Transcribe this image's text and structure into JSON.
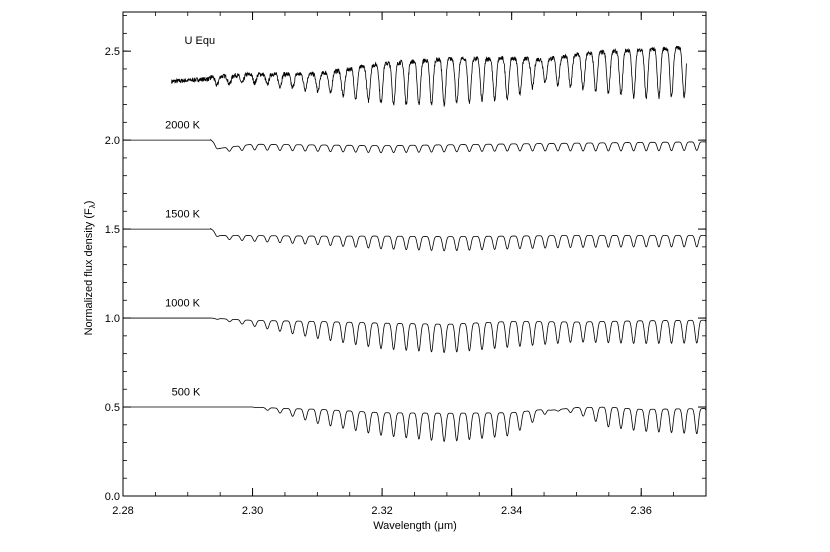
{
  "chart_data": {
    "type": "line",
    "xlabel": "Wavelength (μm)",
    "ylabel": "Normalized flux density (F",
    "ylabel_sub": "λ",
    "ylabel_close": ")",
    "xlim": [
      2.28,
      2.37
    ],
    "ylim": [
      0.0,
      2.72
    ],
    "x_ticks": [
      2.28,
      2.3,
      2.32,
      2.34,
      2.36
    ],
    "x_tick_labels": [
      "2.28",
      "2.30",
      "2.32",
      "2.34",
      "2.36"
    ],
    "y_ticks": [
      0.0,
      0.5,
      1.0,
      1.5,
      2.0,
      2.5
    ],
    "y_tick_labels": [
      "0.0",
      "0.5",
      "1.0",
      "1.5",
      "2.0",
      "2.5"
    ],
    "grid": false,
    "legend": "none",
    "series": [
      {
        "name": "U Equ",
        "baseline": 2.35,
        "x_start": 2.2875,
        "x_end": 2.367,
        "band_head": 2.2935,
        "note_shape": "noisy observed spectrum with strong CO absorption lines",
        "envelope": [
          [
            2.2875,
            0.03
          ],
          [
            2.3,
            0.03
          ],
          [
            2.31,
            0.06
          ],
          [
            2.315,
            0.1
          ],
          [
            2.32,
            0.14
          ],
          [
            2.33,
            0.16
          ],
          [
            2.34,
            0.14
          ],
          [
            2.345,
            0.08
          ],
          [
            2.35,
            0.12
          ],
          [
            2.36,
            0.17
          ],
          [
            2.367,
            0.17
          ]
        ],
        "baseline_shape": [
          [
            2.2875,
            2.33
          ],
          [
            2.3,
            2.36
          ],
          [
            2.31,
            2.35
          ],
          [
            2.32,
            2.38
          ],
          [
            2.33,
            2.4
          ],
          [
            2.34,
            2.41
          ],
          [
            2.35,
            2.44
          ],
          [
            2.36,
            2.45
          ],
          [
            2.367,
            2.46
          ]
        ],
        "label_x": 2.2895,
        "label_y": 2.54
      },
      {
        "name": "2000 K",
        "baseline": 2.0,
        "x_start": 2.28,
        "x_end": 2.37,
        "band_head": 2.2935,
        "envelope": [
          [
            2.2935,
            0.01
          ],
          [
            2.3,
            0.02
          ],
          [
            2.32,
            0.025
          ],
          [
            2.34,
            0.025
          ],
          [
            2.36,
            0.03
          ],
          [
            2.37,
            0.03
          ]
        ],
        "baseline_shape": [
          [
            2.28,
            2.0
          ],
          [
            2.2935,
            2.0
          ],
          [
            2.295,
            1.95
          ],
          [
            2.3,
            1.97
          ],
          [
            2.32,
            1.96
          ],
          [
            2.34,
            1.97
          ],
          [
            2.37,
            1.98
          ]
        ],
        "label_x": 2.2865,
        "label_y": 2.065
      },
      {
        "name": "1500 K",
        "baseline": 1.5,
        "x_start": 2.28,
        "x_end": 2.37,
        "band_head": 2.2935,
        "envelope": [
          [
            2.2935,
            0.01
          ],
          [
            2.3,
            0.02
          ],
          [
            2.31,
            0.03
          ],
          [
            2.32,
            0.045
          ],
          [
            2.33,
            0.05
          ],
          [
            2.34,
            0.045
          ],
          [
            2.36,
            0.04
          ],
          [
            2.37,
            0.04
          ]
        ],
        "baseline_shape": [
          [
            2.28,
            1.5
          ],
          [
            2.2935,
            1.5
          ],
          [
            2.295,
            1.46
          ],
          [
            2.31,
            1.45
          ],
          [
            2.33,
            1.44
          ],
          [
            2.35,
            1.45
          ],
          [
            2.37,
            1.45
          ]
        ],
        "label_x": 2.2865,
        "label_y": 1.565
      },
      {
        "name": "1000 K",
        "baseline": 1.0,
        "x_start": 2.28,
        "x_end": 2.37,
        "band_head": 2.2935,
        "envelope": [
          [
            2.2935,
            0.0
          ],
          [
            2.3,
            0.02
          ],
          [
            2.31,
            0.06
          ],
          [
            2.32,
            0.09
          ],
          [
            2.33,
            0.1
          ],
          [
            2.34,
            0.09
          ],
          [
            2.35,
            0.07
          ],
          [
            2.36,
            0.08
          ],
          [
            2.37,
            0.08
          ]
        ],
        "baseline_shape": [
          [
            2.28,
            1.0
          ],
          [
            2.2935,
            1.0
          ],
          [
            2.3,
            0.98
          ],
          [
            2.32,
            0.94
          ],
          [
            2.33,
            0.93
          ],
          [
            2.34,
            0.95
          ],
          [
            2.37,
            0.96
          ]
        ],
        "label_x": 2.2865,
        "label_y": 1.065
      },
      {
        "name": "500 K",
        "baseline": 0.5,
        "x_start": 2.28,
        "x_end": 2.37,
        "band_head": 2.2935,
        "envelope": [
          [
            2.3,
            0.0
          ],
          [
            2.305,
            0.02
          ],
          [
            2.31,
            0.05
          ],
          [
            2.32,
            0.08
          ],
          [
            2.33,
            0.1
          ],
          [
            2.34,
            0.08
          ],
          [
            2.345,
            0.02
          ],
          [
            2.346,
            0.0
          ],
          [
            2.35,
            0.02
          ],
          [
            2.355,
            0.07
          ],
          [
            2.37,
            0.09
          ]
        ],
        "baseline_shape": [
          [
            2.28,
            0.5
          ],
          [
            2.3,
            0.5
          ],
          [
            2.31,
            0.47
          ],
          [
            2.32,
            0.44
          ],
          [
            2.33,
            0.43
          ],
          [
            2.34,
            0.44
          ],
          [
            2.345,
            0.48
          ],
          [
            2.35,
            0.49
          ],
          [
            2.36,
            0.46
          ],
          [
            2.37,
            0.46
          ]
        ],
        "label_x": 2.2875,
        "label_y": 0.565
      }
    ]
  }
}
